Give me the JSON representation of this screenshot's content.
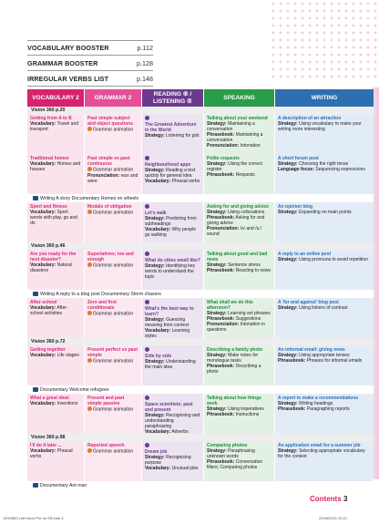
{
  "booster": [
    {
      "name": "VOCABULARY BOOSTER",
      "page": "p.112"
    },
    {
      "name": "GRAMMAR BOOSTER",
      "page": "p.128"
    },
    {
      "name": "IRREGULAR VERBS LIST",
      "page": "p.148"
    }
  ],
  "headers": {
    "vocabulary": "VOCABULARY 2",
    "grammar": "GRAMMAR 2",
    "reading": "READING ⑥ / LISTENING ⑤",
    "speaking": "SPEAKING",
    "writing": "WRITING"
  },
  "units": [
    {
      "vision": "Vision 360 p.20",
      "rows": [
        {
          "vocab": {
            "t": "Getting from A to B",
            "k": "Vocabulary:",
            "v": "Travel and transport"
          },
          "gram": {
            "t": "Past simple subject and object questions",
            "v": "Grammar animation"
          },
          "read": {
            "t": "The Greatest Adventure in the World",
            "k": "Strategy:",
            "v": "Listening for gist"
          },
          "speak": {
            "t": "Talking about your weekend",
            "k": "Strategy:",
            "v": "Maintaining a conversation",
            "k2": "Phrasebook:",
            "v2": "Maintaining a conversation",
            "k3": "Pronunciation:",
            "v3": "Intonation"
          },
          "write": {
            "t": "A description of an attraction",
            "k": "Strategy:",
            "v": "Using vocabulary to make your writing more interesting"
          }
        }
      ],
      "doc": ""
    },
    {
      "vision": "",
      "rows": [
        {
          "vocab": {
            "t": "Traditional homes",
            "k": "Vocabulary:",
            "v": "Homes and houses"
          },
          "gram": {
            "t": "Past simple vs past continuous",
            "v": "Grammar animation",
            "k2": "Pronunciation:",
            "v2": "was and were"
          },
          "read": {
            "t": "Neighbourhood apps",
            "k": "Strategy:",
            "v": "Reading a text quickly for general idea",
            "k2": "Vocabulary:",
            "v2": "Phrasal verbs"
          },
          "speak": {
            "t": "Polite requests",
            "k": "Strategy:",
            "v": "Using the correct register",
            "k2": "Phrasebook:",
            "v2": "Requests"
          },
          "write": {
            "t": "A short forum post",
            "k": "Strategy:",
            "v": "Choosing the right tense",
            "k2": "Language focus:",
            "v2": "Sequencing expressions"
          }
        }
      ],
      "doc": "Writing A story  Documentary Homes on wheels"
    },
    {
      "vision": "",
      "rows": [
        {
          "vocab": {
            "t": "Sport and fitness",
            "k": "Vocabulary:",
            "v": "Sport words with play, go and do"
          },
          "gram": {
            "t": "Modals of obligation",
            "v": "Grammar animation"
          },
          "read": {
            "t": "Let's walk",
            "k": "Strategy:",
            "v": "Predicting from subheadings",
            "k2": "Vocabulary:",
            "v2": "Why people go walking"
          },
          "speak": {
            "t": "Asking for and giving advice",
            "k": "Strategy:",
            "v": "Using collocations",
            "k2": "Phrasebook:",
            "v2": "Asking for and giving advice",
            "k3": "Pronunciation:",
            "v3": "/ʌ/ and /uː/ sound"
          },
          "write": {
            "t": "An opinion blog",
            "k": "Strategy:",
            "v": "Expanding on main points"
          }
        }
      ],
      "doc": ""
    },
    {
      "vision": "Vision 360 p.46",
      "rows": [
        {
          "vocab": {
            "t": "Are you ready for the next disaster?",
            "k": "Vocabulary:",
            "v": "Natural disasters"
          },
          "gram": {
            "t": "Superlatives; too and enough",
            "v": "Grammar animation"
          },
          "read": {
            "t": "What do cities smell like?",
            "k": "Strategy:",
            "v": "Identifying key words to understand the topic"
          },
          "speak": {
            "t": "Talking about good and bad news",
            "k": "Strategy:",
            "v": "Sentence stress",
            "k2": "Phrasebook:",
            "v2": "Reacting to news"
          },
          "write": {
            "t": "A reply to an online post",
            "k": "Strategy:",
            "v": "Using pronouns to avoid repetition"
          }
        }
      ],
      "doc": "Writing A reply to a blog post  Documentary Storm chasers"
    },
    {
      "vision": "",
      "rows": [
        {
          "vocab": {
            "t": "After-school",
            "k": "Vocabulary:",
            "v": "After-school activities"
          },
          "gram": {
            "t": "Zero and first conditionals",
            "v": "Grammar animation"
          },
          "read": {
            "t": "What's the best way to learn?",
            "k": "Strategy:",
            "v": "Guessing meaning from context",
            "k2": "Vocabulary:",
            "v2": "Learning styles"
          },
          "speak": {
            "t": "What shall we do this afternoon?",
            "k": "Strategy:",
            "v": "Learning set phrases",
            "k2": "Phrasebook:",
            "v2": "Suggestions",
            "k3": "Pronunciation:",
            "v3": "Intonation in questions"
          },
          "write": {
            "t": "A 'for and against' blog post",
            "k": "Strategy:",
            "v": "Using linkers of contrast"
          }
        }
      ],
      "doc": ""
    },
    {
      "vision": "Vision 360 p.72",
      "rows": [
        {
          "vocab": {
            "t": "Getting together",
            "k": "Vocabulary:",
            "v": "Life stages"
          },
          "gram": {
            "t": "Present perfect vs past simple",
            "v": "Grammar animation"
          },
          "read": {
            "t": "Side by side",
            "k": "Strategy:",
            "v": "Understanding the main idea"
          },
          "speak": {
            "t": "Describing a family photo",
            "k": "Strategy:",
            "v": "Make notes for monologue tasks",
            "k2": "Phrasebook:",
            "v2": "Describing a photo"
          },
          "write": {
            "t": "An informal email: giving news",
            "k": "Strategy:",
            "v": "Using appropriate tenses",
            "k2": "Phrasebook:",
            "v2": "Phrases for informal emails"
          }
        }
      ],
      "doc": "Documentary Welcome refugees"
    },
    {
      "vision": "",
      "rows": [
        {
          "vocab": {
            "t": "What a great idea!",
            "k": "Vocabulary:",
            "v": "Inventions"
          },
          "gram": {
            "t": "Present and past simple passive",
            "v": "Grammar animation"
          },
          "read": {
            "t": "Space scientists: past and present",
            "k": "Strategy:",
            "v": "Recognising and understanding paraphrasing",
            "k2": "Vocabulary:",
            "v2": "Adverbs"
          },
          "speak": {
            "t": "Talking about how things work",
            "k": "Strategy:",
            "v": "Using imperatives",
            "k2": "Phrasebook:",
            "v2": "Instructions"
          },
          "write": {
            "t": "A report to make a recommendations",
            "k": "Strategy:",
            "v": "Writing headings",
            "k2": "Phrasebook:",
            "v2": "Paragraphing reports"
          }
        }
      ],
      "doc": ""
    },
    {
      "vision": "Vision 360 p.98",
      "rows": [
        {
          "vocab": {
            "t": "I'll do it later ...",
            "k": "Vocabulary:",
            "v": "Phrasal verbs"
          },
          "gram": {
            "t": "Reported speech",
            "v": "Grammar animation"
          },
          "read": {
            "t": "Dream job",
            "k": "Strategy:",
            "v": "Recognising purpose",
            "k2": "Vocabulary:",
            "v2": "Unusual jobs"
          },
          "speak": {
            "t": "Comparing photos",
            "k": "Strategy:",
            "v": "Paraphrasing unknown words",
            "k2": "Phrasebook:",
            "v2": "Conversation fillers; Comparing photos"
          },
          "write": {
            "t": "An application email for a summer job",
            "k": "Strategy:",
            "v": "Selecting appropriate vocabulary for the context"
          }
        }
      ],
      "doc": "Documentary Ant man"
    }
  ],
  "footer": {
    "contents": "Contents",
    "page": "3",
    "left": "6092883 LifeVision Pre-Int SB.indb   3",
    "right": "22/08/2021   20:21"
  }
}
